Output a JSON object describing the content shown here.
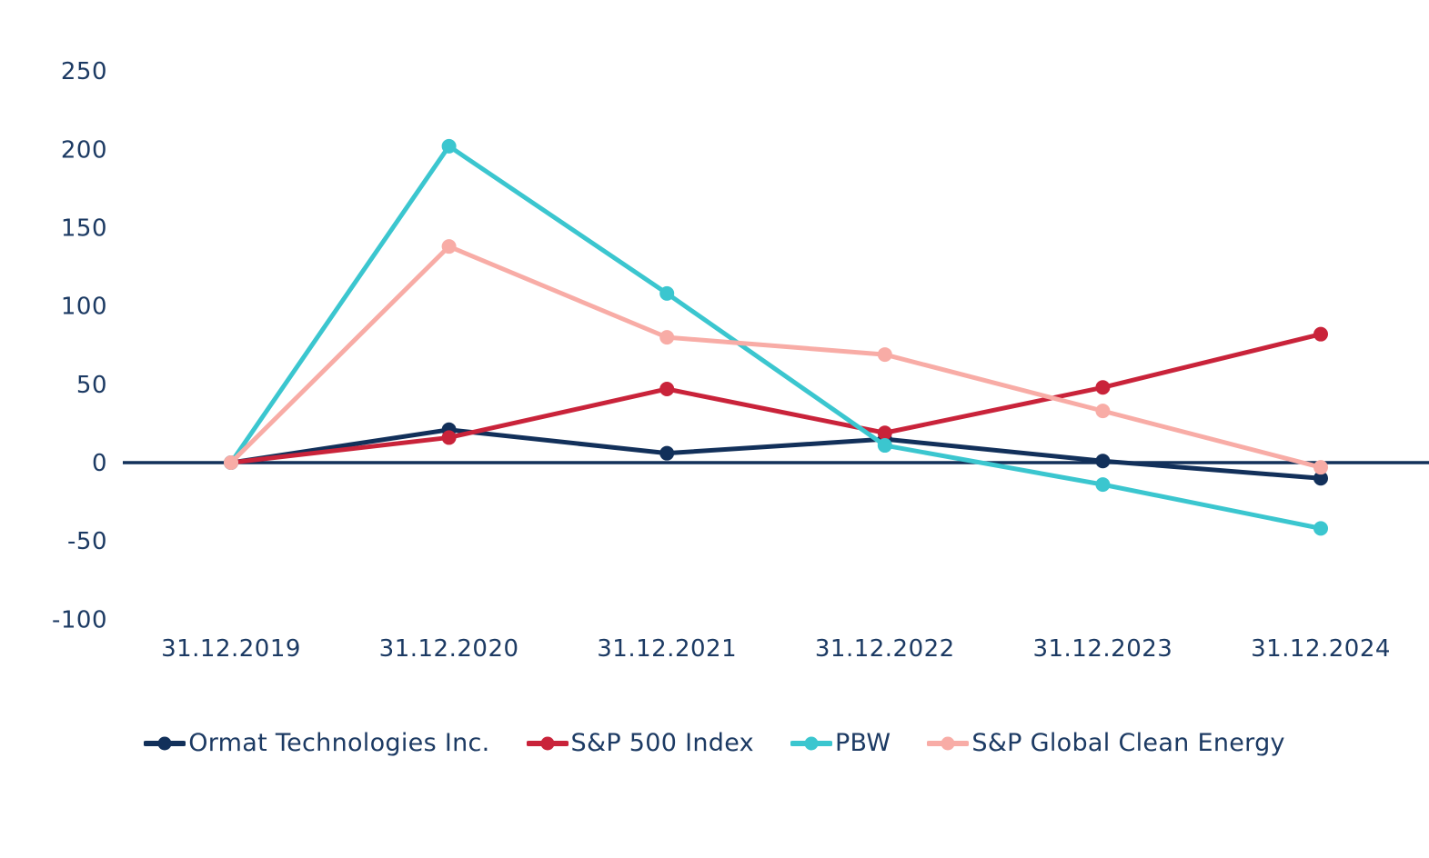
{
  "chart_data": {
    "type": "line",
    "title": "",
    "xlabel": "",
    "ylabel": "",
    "grid": false,
    "legend_position": "bottom",
    "axis_color": "#12305A",
    "label_color": "#1C3A63",
    "background_color": "#FFFFFF",
    "ylim": [
      -100,
      250
    ],
    "y_ticks": [
      250,
      200,
      150,
      100,
      50,
      0,
      -50,
      -100
    ],
    "categories": [
      "31.12.2019",
      "31.12.2020",
      "31.12.2021",
      "31.12.2022",
      "31.12.2023",
      "31.12.2024"
    ],
    "series": [
      {
        "name": "Ormat Technologies Inc.",
        "color": "#12305A",
        "values": [
          0,
          21,
          6,
          15,
          1,
          -10
        ]
      },
      {
        "name": "S&P 500 Index",
        "color": "#C9233A",
        "values": [
          0,
          16,
          47,
          19,
          48,
          82
        ]
      },
      {
        "name": "PBW",
        "color": "#3BC6CF",
        "values": [
          0,
          202,
          108,
          11,
          -14,
          -42
        ]
      },
      {
        "name": "S&P Global Clean Energy",
        "color": "#F8ACA6",
        "values": [
          0,
          138,
          80,
          69,
          33,
          -3
        ]
      }
    ]
  }
}
